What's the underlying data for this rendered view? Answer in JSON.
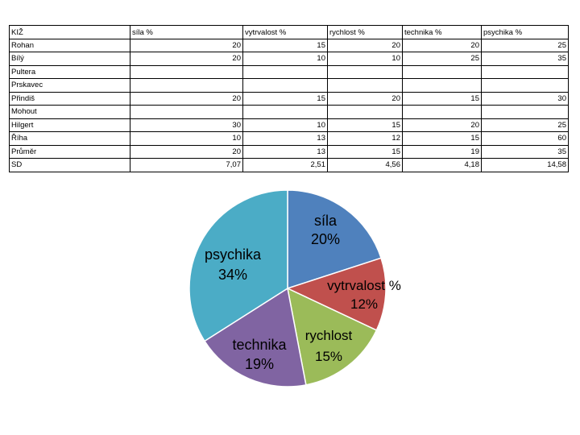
{
  "table": {
    "headers": [
      "KIŽ",
      "síla %",
      "vytrvalost %",
      "rychlost %",
      "technika %",
      "psychika %"
    ],
    "rows": [
      [
        "Rohan",
        "20",
        "15",
        "20",
        "20",
        "25"
      ],
      [
        "Bílý",
        "20",
        "10",
        "10",
        "25",
        "35"
      ],
      [
        "Pultera",
        "",
        "",
        "",
        "",
        ""
      ],
      [
        "Prskavec",
        "",
        "",
        "",
        "",
        ""
      ],
      [
        "Přindiš",
        "20",
        "15",
        "20",
        "15",
        "30"
      ],
      [
        "Mohout",
        "",
        "",
        "",
        "",
        ""
      ],
      [
        "Hilgert",
        "30",
        "10",
        "15",
        "20",
        "25"
      ],
      [
        "Říha",
        "10",
        "13",
        "12",
        "15",
        "60"
      ],
      [
        "Průměr",
        "20",
        "13",
        "15",
        "19",
        "35"
      ],
      [
        "SD",
        "7,07",
        "2,51",
        "4,56",
        "4,18",
        "14,58"
      ]
    ]
  },
  "chart_data": {
    "type": "pie",
    "slices": [
      {
        "label": "síla",
        "pct_label": "20%",
        "value": 20,
        "color": "#4F81BD"
      },
      {
        "label": "vytrvalost %",
        "pct_label": "12%",
        "value": 12,
        "color": "#C0504D"
      },
      {
        "label": "rychlost",
        "pct_label": "15%",
        "value": 15,
        "color": "#9BBB59"
      },
      {
        "label": "technika",
        "pct_label": "19%",
        "value": 19,
        "color": "#8064A2"
      },
      {
        "label": "psychika",
        "pct_label": "34%",
        "value": 34,
        "color": "#4BACC6"
      }
    ],
    "title": "",
    "legend": "none"
  }
}
